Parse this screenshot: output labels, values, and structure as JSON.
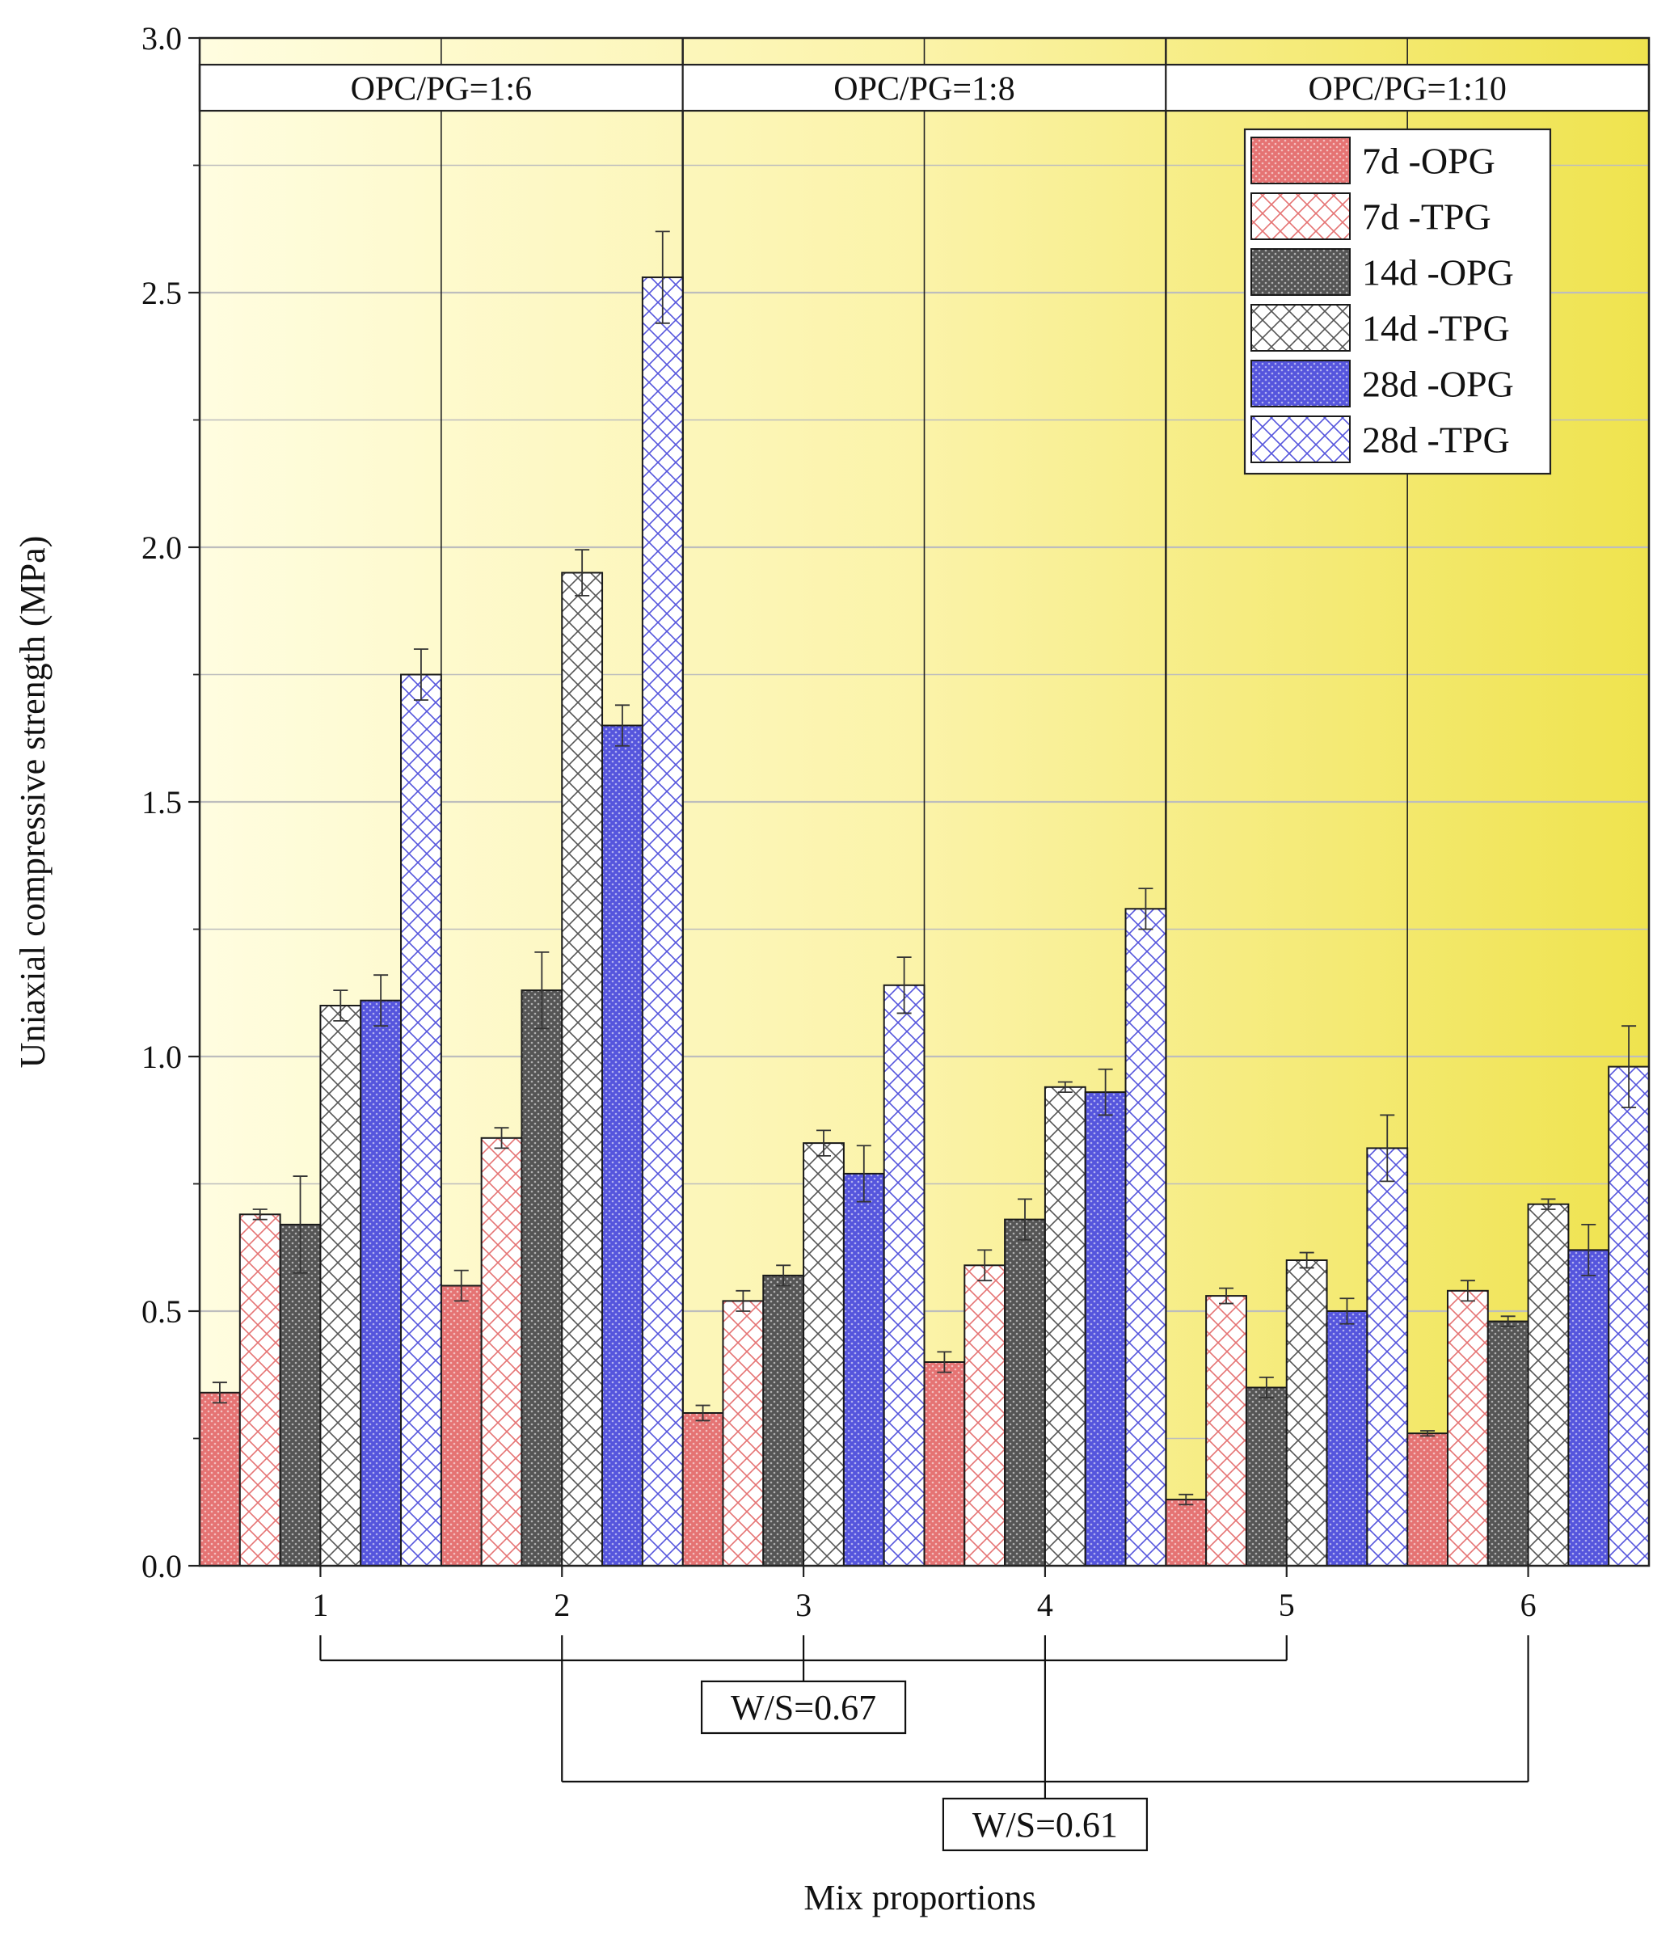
{
  "chart_data": {
    "type": "bar",
    "title": "",
    "xlabel": "Mix proportions",
    "ylabel": "Uniaxial compressive strength (MPa)",
    "ylim": [
      0,
      3.0
    ],
    "yticks": [
      "0.0",
      "0.5",
      "1.0",
      "1.5",
      "2.0",
      "2.5",
      "3.0"
    ],
    "grid": true,
    "legend_position": "top-right",
    "categories": [
      "1",
      "2",
      "3",
      "4",
      "5",
      "6"
    ],
    "series": [
      {
        "name": "7d -OPG",
        "color": "#e57373",
        "pattern": "dots",
        "values": [
          0.34,
          0.55,
          0.3,
          0.4,
          0.13,
          0.26
        ],
        "errors": [
          0.02,
          0.03,
          0.015,
          0.02,
          0.01,
          0.005
        ]
      },
      {
        "name": "7d -TPG",
        "color": "#e57373",
        "pattern": "cross",
        "values": [
          0.69,
          0.84,
          0.52,
          0.59,
          0.53,
          0.54
        ],
        "errors": [
          0.01,
          0.02,
          0.02,
          0.03,
          0.015,
          0.02
        ]
      },
      {
        "name": "14d -OPG",
        "color": "#555555",
        "pattern": "dots",
        "values": [
          0.67,
          1.13,
          0.57,
          0.68,
          0.35,
          0.48
        ],
        "errors": [
          0.095,
          0.075,
          0.02,
          0.04,
          0.02,
          0.01
        ]
      },
      {
        "name": "14d -TPG",
        "color": "#555555",
        "pattern": "cross",
        "values": [
          1.1,
          1.95,
          0.83,
          0.94,
          0.6,
          0.71
        ],
        "errors": [
          0.03,
          0.045,
          0.025,
          0.01,
          0.015,
          0.01
        ]
      },
      {
        "name": "28d -OPG",
        "color": "#5555dd",
        "pattern": "dots",
        "values": [
          1.11,
          1.65,
          0.77,
          0.93,
          0.5,
          0.62
        ],
        "errors": [
          0.05,
          0.04,
          0.055,
          0.045,
          0.025,
          0.05
        ]
      },
      {
        "name": "28d -TPG",
        "color": "#5555dd",
        "pattern": "cross",
        "values": [
          1.75,
          2.53,
          1.14,
          1.29,
          0.82,
          0.98
        ],
        "errors": [
          0.05,
          0.09,
          0.055,
          0.04,
          0.065,
          0.08
        ]
      }
    ],
    "groups": [
      {
        "label": "OPC/PG=1:6",
        "categories": [
          "1",
          "2"
        ]
      },
      {
        "label": "OPC/PG=1:8",
        "categories": [
          "3",
          "4"
        ]
      },
      {
        "label": "OPC/PG=1:10",
        "categories": [
          "5",
          "6"
        ]
      }
    ],
    "annotations": [
      {
        "label": "W/S=0.67",
        "categories": [
          "1",
          "3",
          "5"
        ]
      },
      {
        "label": "W/S=0.61",
        "categories": [
          "2",
          "4",
          "6"
        ]
      }
    ]
  }
}
